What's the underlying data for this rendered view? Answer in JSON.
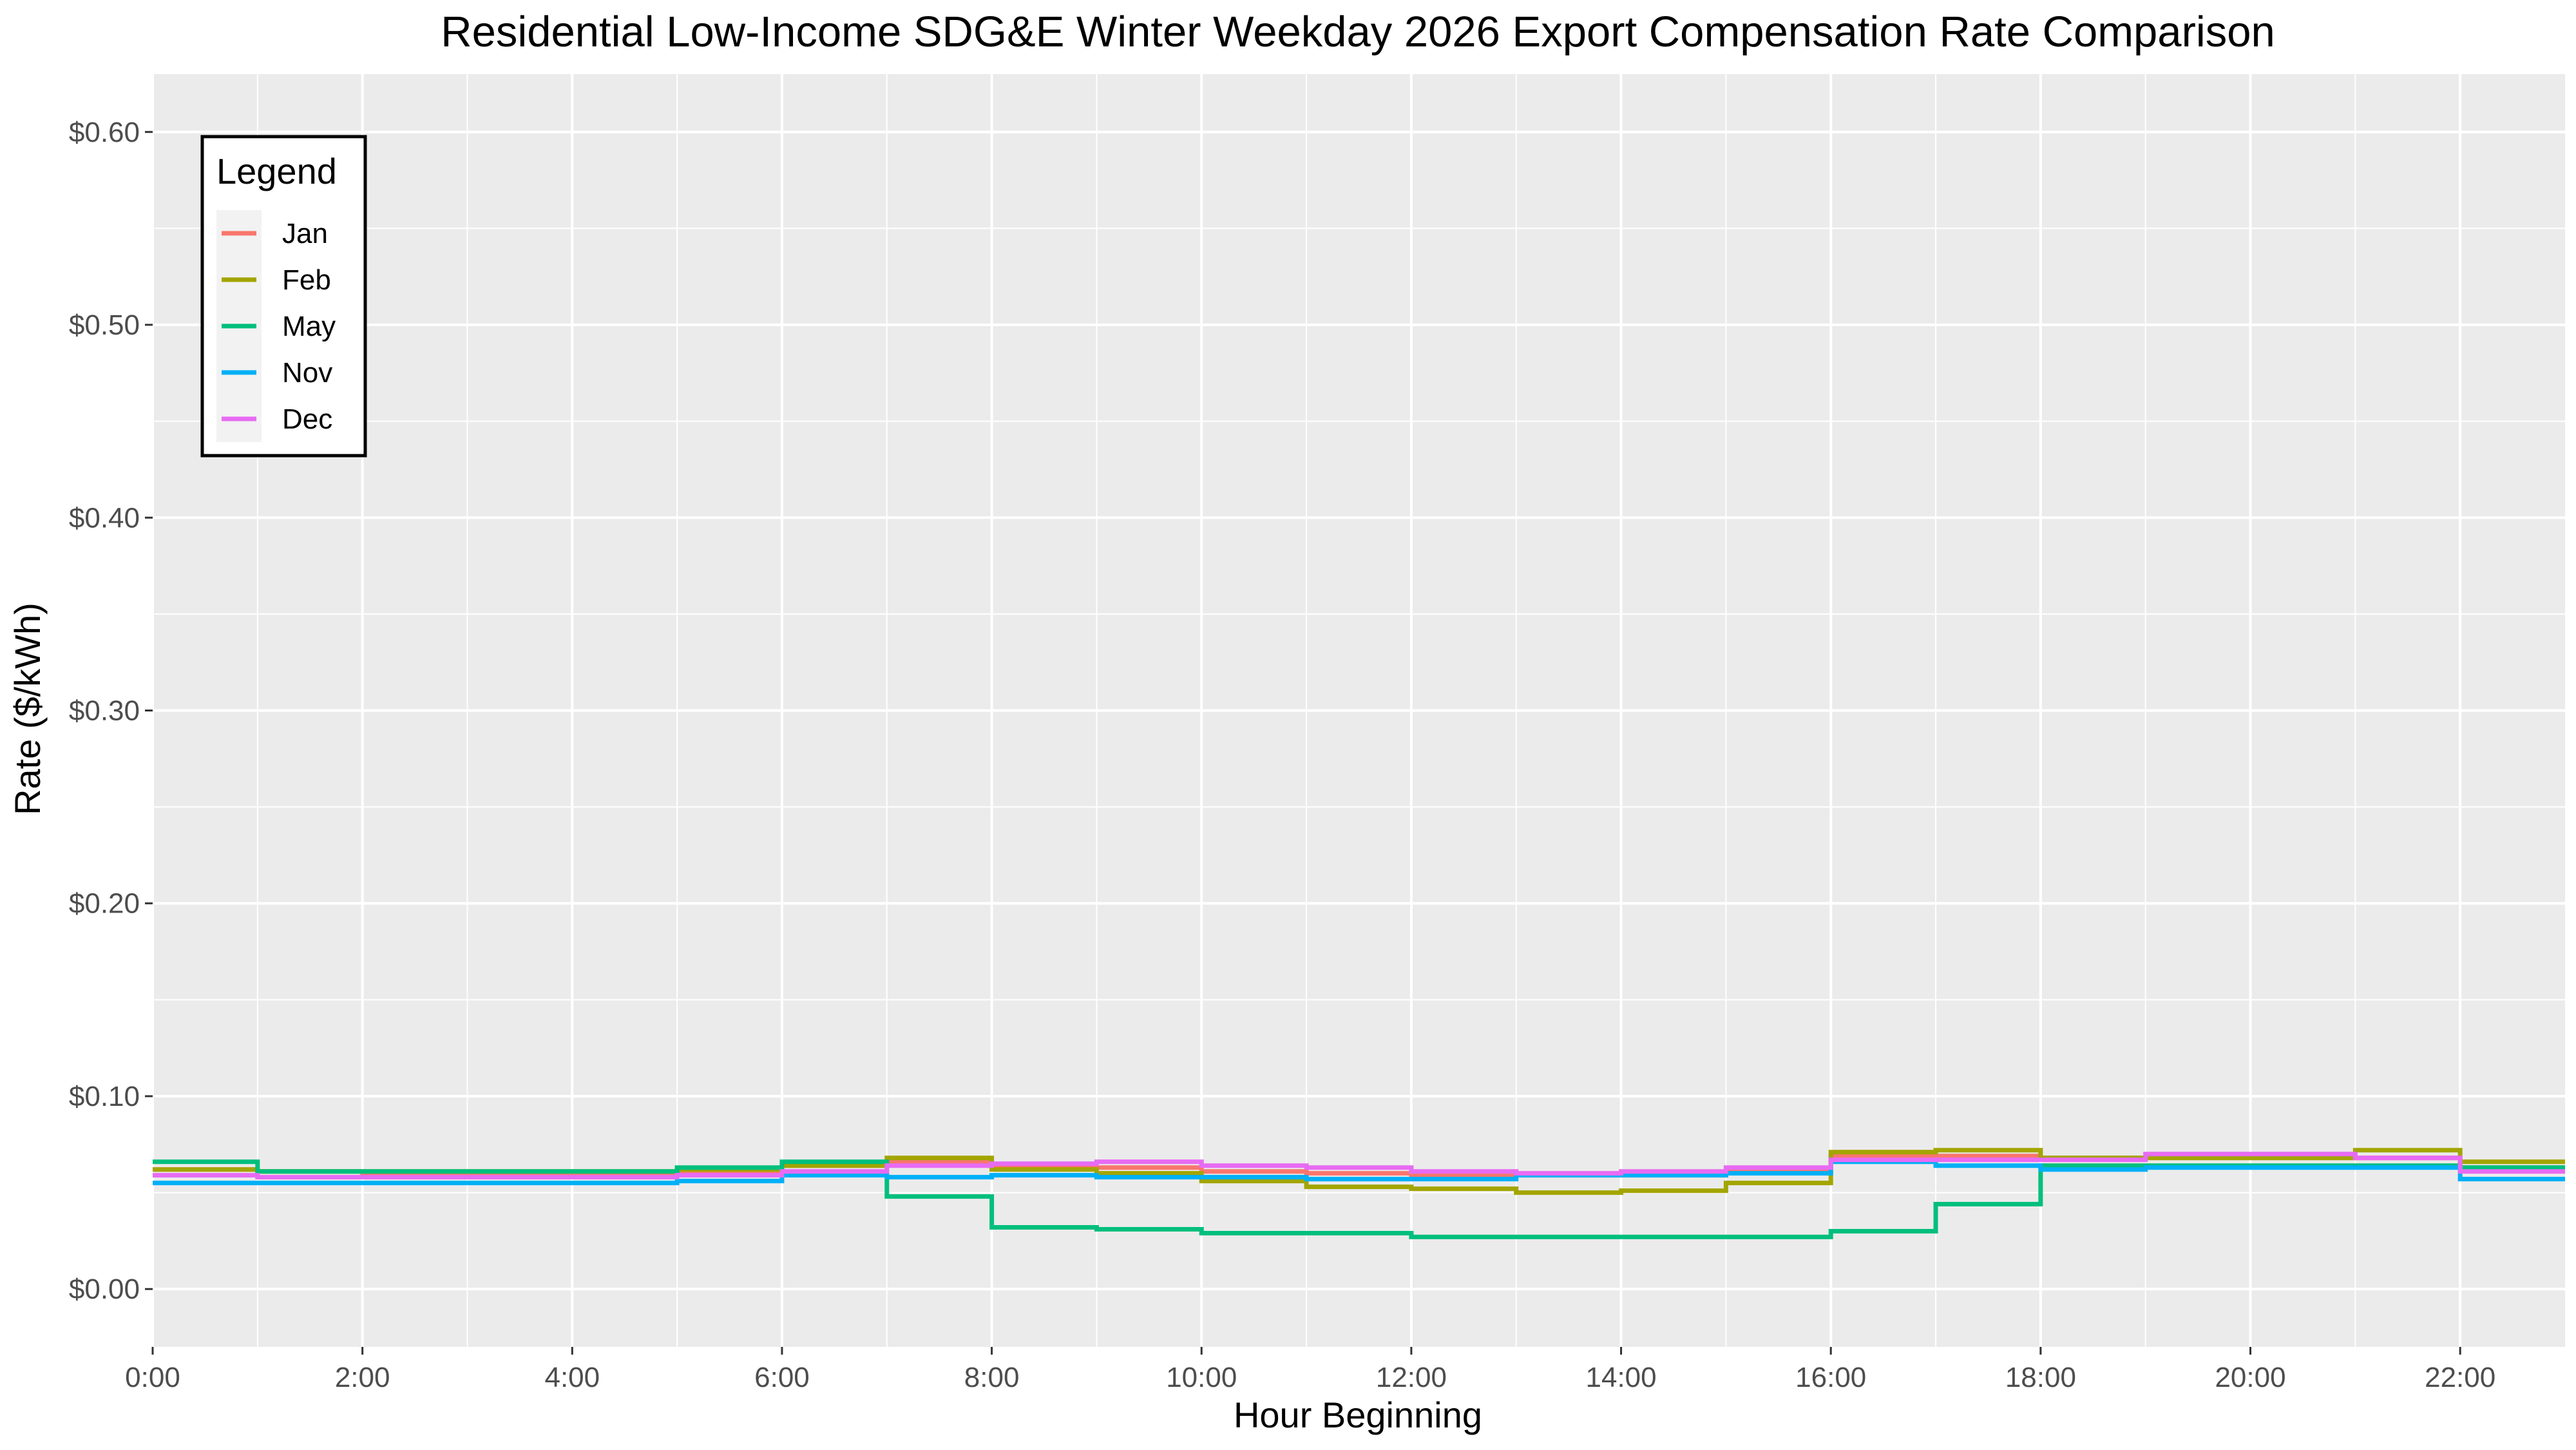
{
  "chart_data": {
    "type": "line",
    "step": true,
    "title": "Residential Low-Income SDG&E Winter Weekday 2026 Export Compensation Rate Comparison",
    "xlabel": "Hour Beginning",
    "ylabel": "Rate ($/kWh)",
    "xlim": [
      0,
      23
    ],
    "ylim": [
      -0.03,
      0.63
    ],
    "x_ticks": [
      0,
      2,
      4,
      6,
      8,
      10,
      12,
      14,
      16,
      18,
      20,
      22
    ],
    "x_tick_labels": [
      "0:00",
      "2:00",
      "4:00",
      "6:00",
      "8:00",
      "10:00",
      "12:00",
      "14:00",
      "16:00",
      "18:00",
      "20:00",
      "22:00"
    ],
    "y_ticks": [
      0,
      0.1,
      0.2,
      0.3,
      0.4,
      0.5,
      0.6
    ],
    "y_tick_labels": [
      "$0.00",
      "$0.10",
      "$0.20",
      "$0.30",
      "$0.40",
      "$0.50",
      "$0.60"
    ],
    "grid": true,
    "legend_title": "Legend",
    "legend_position": "top-left",
    "x": [
      0,
      1,
      2,
      3,
      4,
      5,
      6,
      7,
      8,
      9,
      10,
      11,
      12,
      13,
      14,
      15,
      16,
      17,
      18,
      19,
      20,
      21,
      22,
      23
    ],
    "series": [
      {
        "name": "Jan",
        "color": "#F8766D",
        "values": [
          0.062,
          0.061,
          0.06,
          0.06,
          0.06,
          0.061,
          0.064,
          0.066,
          0.063,
          0.063,
          0.061,
          0.06,
          0.059,
          0.059,
          0.059,
          0.061,
          0.069,
          0.069,
          0.068,
          0.068,
          0.068,
          0.068,
          0.063,
          0.063
        ]
      },
      {
        "name": "Feb",
        "color": "#A3A500",
        "values": [
          0.062,
          0.061,
          0.061,
          0.061,
          0.061,
          0.062,
          0.064,
          0.068,
          0.062,
          0.06,
          0.056,
          0.053,
          0.052,
          0.05,
          0.051,
          0.055,
          0.071,
          0.072,
          0.068,
          0.068,
          0.068,
          0.072,
          0.066,
          0.066
        ]
      },
      {
        "name": "May",
        "color": "#00BF7D",
        "values": [
          0.066,
          0.061,
          0.061,
          0.061,
          0.061,
          0.063,
          0.066,
          0.048,
          0.032,
          0.031,
          0.029,
          0.029,
          0.027,
          0.027,
          0.027,
          0.027,
          0.03,
          0.044,
          0.064,
          0.064,
          0.064,
          0.064,
          0.063,
          0.063
        ]
      },
      {
        "name": "Nov",
        "color": "#00B0F6",
        "values": [
          0.055,
          0.055,
          0.055,
          0.055,
          0.055,
          0.056,
          0.059,
          0.058,
          0.059,
          0.058,
          0.058,
          0.057,
          0.057,
          0.059,
          0.059,
          0.06,
          0.066,
          0.064,
          0.062,
          0.063,
          0.063,
          0.063,
          0.057,
          0.057
        ]
      },
      {
        "name": "Dec",
        "color": "#E76BF3",
        "values": [
          0.059,
          0.058,
          0.058,
          0.058,
          0.058,
          0.059,
          0.061,
          0.064,
          0.065,
          0.066,
          0.064,
          0.063,
          0.061,
          0.06,
          0.061,
          0.063,
          0.067,
          0.067,
          0.067,
          0.07,
          0.07,
          0.068,
          0.061,
          0.061
        ]
      }
    ]
  }
}
